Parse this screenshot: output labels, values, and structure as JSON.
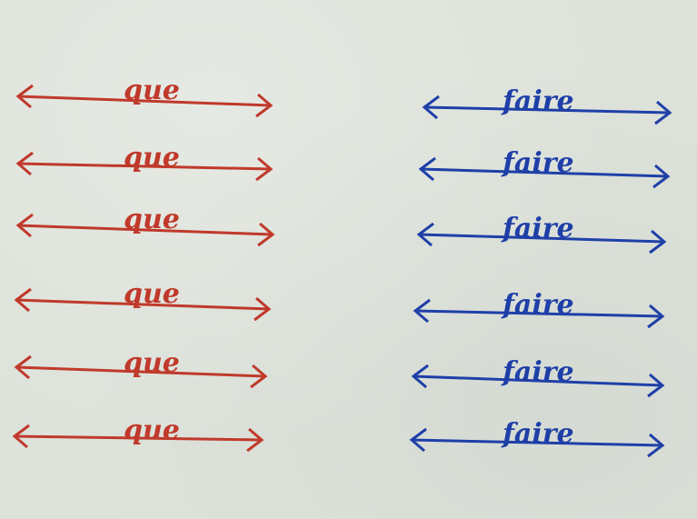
{
  "colors": {
    "background": "#dde2da",
    "red": "#c0392b",
    "blue": "#1f3fa8"
  },
  "left_column": {
    "color_name": "red",
    "rows": [
      {
        "word": "que"
      },
      {
        "word": "que"
      },
      {
        "word": "que"
      },
      {
        "word": "que"
      },
      {
        "word": "que"
      },
      {
        "word": "que"
      }
    ]
  },
  "right_column": {
    "color_name": "blue",
    "rows": [
      {
        "word": "faire"
      },
      {
        "word": "faire"
      },
      {
        "word": "faire"
      },
      {
        "word": "faire"
      },
      {
        "word": "faire"
      },
      {
        "word": "faire"
      }
    ]
  }
}
